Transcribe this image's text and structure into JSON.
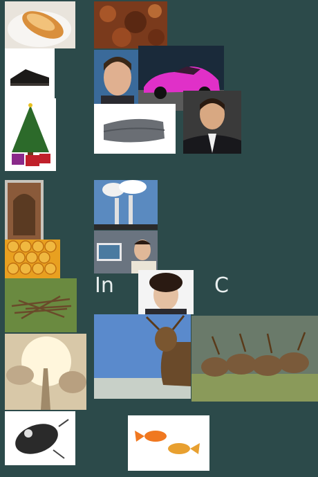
{
  "labels": {
    "left": "In",
    "right": "C"
  },
  "images": [
    {
      "name": "hotdog-bun-image"
    },
    {
      "name": "rust-texture-image"
    },
    {
      "name": "dress-shoe-image"
    },
    {
      "name": "man-selfie-image"
    },
    {
      "name": "pink-sports-car-image"
    },
    {
      "name": "christmas-tree-image"
    },
    {
      "name": "folded-blanket-image"
    },
    {
      "name": "man-in-suit-image"
    },
    {
      "name": "wooden-door-image"
    },
    {
      "name": "factory-smokestacks-image"
    },
    {
      "name": "honeycomb-image"
    },
    {
      "name": "tablet-guy-image"
    },
    {
      "name": "twig-nest-image"
    },
    {
      "name": "curly-hair-man-image"
    },
    {
      "name": "heaven-stairway-image"
    },
    {
      "name": "single-deer-image"
    },
    {
      "name": "deer-herd-image"
    },
    {
      "name": "fishing-lure-image"
    },
    {
      "name": "goldfish-pair-image"
    }
  ]
}
